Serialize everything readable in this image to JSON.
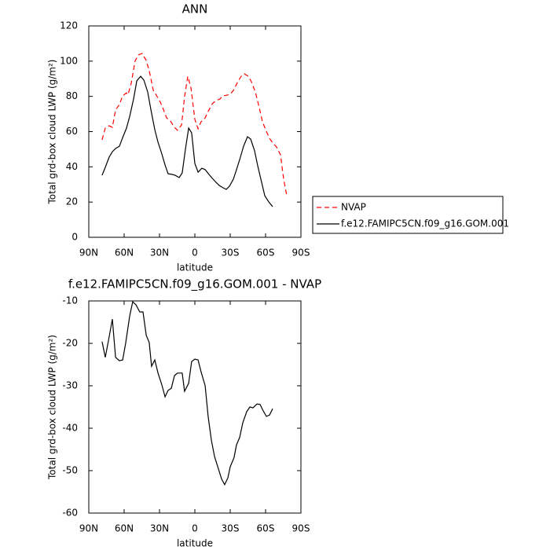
{
  "chart_data": [
    {
      "type": "line",
      "title": "ANN",
      "x_label": "latitude",
      "y_label": "Total grd-box cloud LWP (g/m²)",
      "xlim": [
        90,
        -90
      ],
      "ylim": [
        0,
        120
      ],
      "xticks": [
        {
          "value": 90,
          "label": "90N"
        },
        {
          "value": 60,
          "label": "60N"
        },
        {
          "value": 30,
          "label": "30N"
        },
        0,
        {
          "value": -30,
          "label": "30S"
        },
        {
          "value": -60,
          "label": "60S"
        },
        {
          "value": -90,
          "label": "90S"
        }
      ],
      "yticks": [
        0,
        20,
        40,
        60,
        80,
        100,
        120
      ],
      "legend": "right",
      "series": [
        {
          "name": "NVAP",
          "color": "#ff0000",
          "dashed": true,
          "x": [
            78.7,
            76,
            72.7,
            70,
            67.3,
            64,
            61.3,
            58,
            56.7,
            54,
            50.7,
            48,
            44.7,
            41.3,
            38.7,
            35.3,
            32.7,
            29.3,
            26.7,
            24,
            20.7,
            17.3,
            14.7,
            11.3,
            8.7,
            6,
            3.3,
            0,
            -2.7,
            -5.3,
            -8.7,
            -11.3,
            -14.7,
            -18,
            -21.3,
            -24,
            -27.3,
            -30,
            -33.3,
            -36,
            -39.3,
            -42,
            -45.3,
            -48,
            -51.3,
            -54.7,
            -57.3,
            -60.7,
            -63.3,
            -66.7,
            -69.3,
            -72.7,
            -75.3,
            -78
          ],
          "values": [
            55.3,
            62,
            63.3,
            62.4,
            72.3,
            75.4,
            80.3,
            82,
            81,
            87.4,
            100,
            103.5,
            104.4,
            100.4,
            94.6,
            83.4,
            80.7,
            76.7,
            72.7,
            67.8,
            66,
            62.4,
            60.7,
            63.8,
            79.8,
            91.4,
            84.7,
            66.9,
            61.6,
            65.6,
            67.8,
            71.4,
            75.8,
            77.6,
            78.5,
            80.3,
            80.7,
            81.2,
            83.9,
            87.9,
            91.4,
            92.8,
            91.4,
            88.3,
            82.5,
            73.6,
            65.6,
            60.2,
            56.2,
            53.1,
            51.3,
            46.8,
            33,
            23.6
          ]
        },
        {
          "name": "f.e12.FAMIPC5CN.f09_g16.GOM.001",
          "color": "#000000",
          "dashed": false,
          "x": [
            78.7,
            76,
            72.7,
            70,
            67.3,
            64,
            61.3,
            58,
            55.3,
            52,
            49.3,
            46,
            43.3,
            40,
            37.3,
            34,
            31.3,
            28,
            25.3,
            22.7,
            19.3,
            16.7,
            13.3,
            10.7,
            8,
            5.3,
            2.7,
            0,
            -2.7,
            -6,
            -8.7,
            -12,
            -14.7,
            -18,
            -20.7,
            -24,
            -26.7,
            -29.3,
            -32.7,
            -35.3,
            -38.7,
            -41.3,
            -44.7,
            -47.3,
            -50.7,
            -53.3,
            -56.7,
            -59.3,
            -62.7,
            -66
          ],
          "values": [
            35.2,
            39.7,
            45.5,
            48.6,
            50.4,
            51.7,
            56.6,
            62,
            68.7,
            78.5,
            88.8,
            91.4,
            89.2,
            82.5,
            72.3,
            61.1,
            54,
            47.3,
            41,
            36.1,
            35.7,
            35.2,
            33.9,
            36.6,
            50,
            62,
            59.3,
            41.9,
            37,
            39.2,
            38.4,
            35.7,
            33.5,
            31.2,
            29.4,
            28.1,
            27.2,
            29,
            33,
            38.4,
            45.5,
            51.7,
            57.1,
            55.8,
            49.1,
            40.6,
            31.2,
            23.6,
            20.1,
            17.4
          ]
        }
      ]
    },
    {
      "type": "line",
      "title": "f.e12.FAMIPC5CN.f09_g16.GOM.001 - NVAP",
      "x_label": "latitude",
      "y_label": "Total grd-box cloud LWP (g/m²)",
      "xlim": [
        90,
        -90
      ],
      "ylim": [
        -60,
        -10
      ],
      "xticks": [
        {
          "value": 90,
          "label": "90N"
        },
        {
          "value": 60,
          "label": "60N"
        },
        {
          "value": 30,
          "label": "30N"
        },
        0,
        {
          "value": -30,
          "label": "30S"
        },
        {
          "value": -60,
          "label": "60S"
        },
        {
          "value": -90,
          "label": "90S"
        }
      ],
      "yticks": [
        -60,
        -50,
        -40,
        -30,
        -20,
        -10
      ],
      "series": [
        {
          "color": "#000000",
          "dashed": false,
          "x": [
            78.7,
            76,
            73.3,
            70,
            67.3,
            64,
            61.3,
            58.7,
            55.3,
            52.7,
            50,
            46.7,
            44,
            41.3,
            38.7,
            36.7,
            34,
            31.3,
            28,
            25.3,
            22.7,
            20,
            17.3,
            14.7,
            10.7,
            8.7,
            5.3,
            2.7,
            0,
            -2.7,
            -5.3,
            -8.7,
            -11.3,
            -14,
            -16.7,
            -20,
            -22.7,
            -25.3,
            -28,
            -30,
            -33.3,
            -35.3,
            -38,
            -40.7,
            -44,
            -46.7,
            -49.3,
            -52.7,
            -55.3,
            -58,
            -60.7,
            -63.3,
            -66
          ],
          "values": [
            -19.6,
            -23.3,
            -19.3,
            -14.3,
            -23.3,
            -24.1,
            -23.9,
            -20,
            -13.5,
            -10.2,
            -10.9,
            -12.6,
            -12.6,
            -18.1,
            -19.8,
            -25.4,
            -23.9,
            -27,
            -29.8,
            -32.6,
            -31.1,
            -30.6,
            -27.6,
            -27,
            -27,
            -31.3,
            -29.4,
            -24.3,
            -23.7,
            -23.9,
            -26.7,
            -30,
            -37.2,
            -42.8,
            -46.7,
            -49.6,
            -52,
            -53.3,
            -51.7,
            -49.1,
            -46.9,
            -43.9,
            -42.2,
            -38.7,
            -36.1,
            -35,
            -35.2,
            -34.3,
            -34.4,
            -35.9,
            -37.2,
            -36.9,
            -35.4
          ]
        }
      ]
    }
  ]
}
